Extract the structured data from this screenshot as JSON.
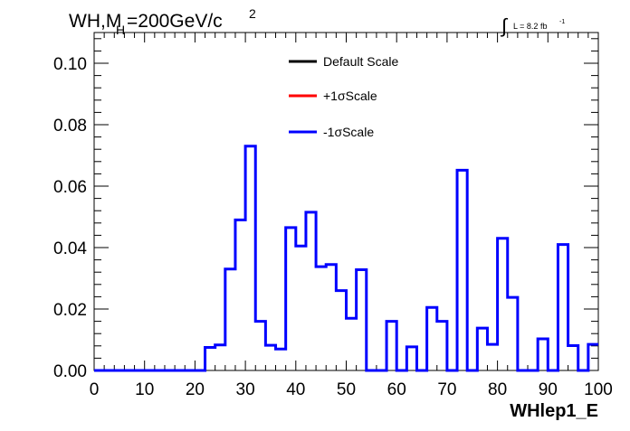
{
  "title": {
    "main": "WH,M",
    "sub": "H",
    "rest": "=200GeV/c",
    "sup": "2"
  },
  "lumi": {
    "integral_sign": "∫",
    "text": "L = 8.2 fb",
    "sup": "-1"
  },
  "legend": {
    "position": "top-center",
    "entries": [
      {
        "label": "Default Scale",
        "color": "#000000"
      },
      {
        "label": "+1σScale",
        "color": "#ff0000"
      },
      {
        "label": "-1σScale",
        "color": "#0000ff"
      }
    ]
  },
  "chart_data": {
    "type": "line",
    "style": "step-histogram",
    "xlabel": "WHlep1_E",
    "ylabel": "",
    "xlim": [
      0,
      100
    ],
    "ylim": [
      0,
      0.11
    ],
    "grid": false,
    "x_ticks": [
      "0",
      "10",
      "20",
      "30",
      "40",
      "50",
      "60",
      "70",
      "80",
      "90",
      "100"
    ],
    "y_ticks": [
      "0.00",
      "0.02",
      "0.04",
      "0.06",
      "0.08",
      "0.10"
    ],
    "bin_edges": [
      0,
      2,
      4,
      6,
      8,
      10,
      12,
      14,
      16,
      18,
      20,
      22,
      24,
      26,
      28,
      30,
      32,
      34,
      36,
      38,
      40,
      42,
      44,
      46,
      48,
      50,
      52,
      54,
      56,
      58,
      60,
      62,
      64,
      66,
      68,
      70,
      72,
      74,
      76,
      78,
      80,
      82,
      84,
      86,
      88,
      90,
      92,
      94,
      96,
      98,
      100
    ],
    "series": [
      {
        "name": "-1σScale",
        "color": "#0000ff",
        "values": [
          0,
          0,
          0,
          0,
          0,
          0,
          0,
          0,
          0,
          0,
          0,
          0.0075,
          0.0083,
          0.033,
          0.049,
          0.073,
          0.016,
          0.0082,
          0.007,
          0.0465,
          0.0405,
          0.0515,
          0.0338,
          0.0345,
          0.026,
          0.017,
          0.0328,
          0,
          0,
          0.016,
          0,
          0.0077,
          0,
          0.0205,
          0.016,
          0,
          0.0652,
          0,
          0.0138,
          0.0085,
          0.043,
          0.0238,
          0,
          0,
          0.0103,
          0,
          0.041,
          0.0081,
          0,
          0.0085
        ]
      }
    ]
  }
}
